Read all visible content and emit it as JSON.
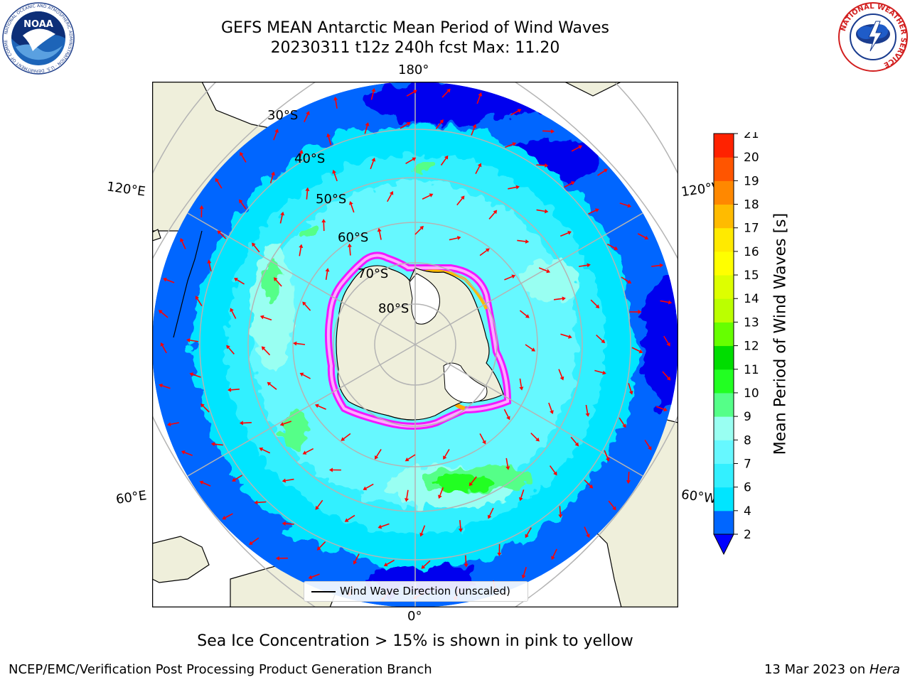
{
  "header": {
    "title_line1": "GEFS MEAN Antarctic Mean Period of Wind Waves",
    "title_line2": "20230311 t12z 240h fcst   Max: 11.20"
  },
  "logos": {
    "noaa": {
      "text": "NOAA",
      "ring_text": "NATIONAL OCEANIC AND ATMOSPHERIC ADMINISTRATION · U.S. DEPARTMENT OF COMMERCE"
    },
    "nws": {
      "ring_text": "NATIONAL WEATHER SERVICE"
    }
  },
  "map": {
    "projection": "south-polar-stereographic",
    "lon_labels": {
      "top": "180°",
      "bottom": "0°",
      "left_upper": "120°E",
      "left_lower": "60°E",
      "right_upper": "120°W",
      "right_lower": "60°W"
    },
    "lat_labels": [
      "30°S",
      "40°S",
      "50°S",
      "60°S",
      "70°S",
      "80°S"
    ],
    "legend_label": "Wind Wave Direction (unscaled)",
    "colors": {
      "land": "#efefdb",
      "ice_sheet": "#ffffff",
      "arrow": "#ff0000",
      "gridline": "#b4b4b4"
    }
  },
  "colorbar": {
    "title": "Mean Period of Wind Waves [s]",
    "tick_labels": [
      "2",
      "4",
      "6",
      "7",
      "8",
      "9",
      "10",
      "11",
      "12",
      "13",
      "14",
      "15",
      "16",
      "17",
      "18",
      "19",
      "20",
      "21"
    ],
    "tick_values": [
      2,
      4,
      6,
      7,
      8,
      9,
      10,
      11,
      12,
      13,
      14,
      15,
      16,
      17,
      18,
      19,
      20,
      21
    ],
    "band_colors": [
      "#0066ff",
      "#00e5ff",
      "#33f0ff",
      "#66f8ff",
      "#99fff2",
      "#55ff88",
      "#22ff22",
      "#00dd00",
      "#66ff00",
      "#bbff00",
      "#ddff00",
      "#ffff00",
      "#ffea00",
      "#ffbb00",
      "#ff8800",
      "#ff5500",
      "#ff2200"
    ],
    "extend_min_color": "#0000ff",
    "top_color": "#ff0000"
  },
  "footer": {
    "subtitle": "Sea Ice Concentration > 15% is shown in pink to yellow",
    "left": "NCEP/EMC/Verification Post Processing Product Generation Branch",
    "right_prefix": "13 Mar 2023 on ",
    "right_host": "Hera"
  }
}
